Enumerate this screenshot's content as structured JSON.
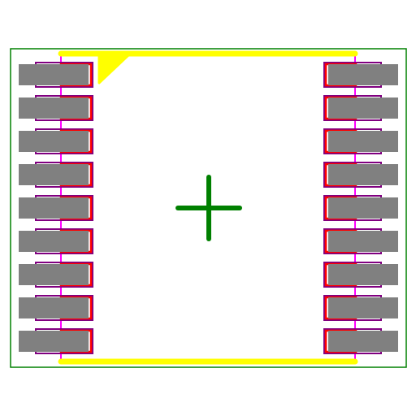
{
  "footprint": {
    "pins_per_side": 9,
    "pin_count": 18,
    "pin1_side": "left",
    "pin1_position": "top"
  },
  "colors": {
    "background": "#ffffff",
    "courtyard": "#008000",
    "silkscreen": "#ffff00",
    "fab_pad_outline": "#ff0000",
    "pad_outline": "#800080",
    "pad_fill": "#808080",
    "body_outline": "#ff00ff",
    "origin_marker": "#008000"
  },
  "layers": {
    "courtyard": "courtyard-outline",
    "silkscreen": "silkscreen-outline",
    "fab": "fab-outline",
    "pads": "smd-pads",
    "origin": "origin-crosshair"
  }
}
